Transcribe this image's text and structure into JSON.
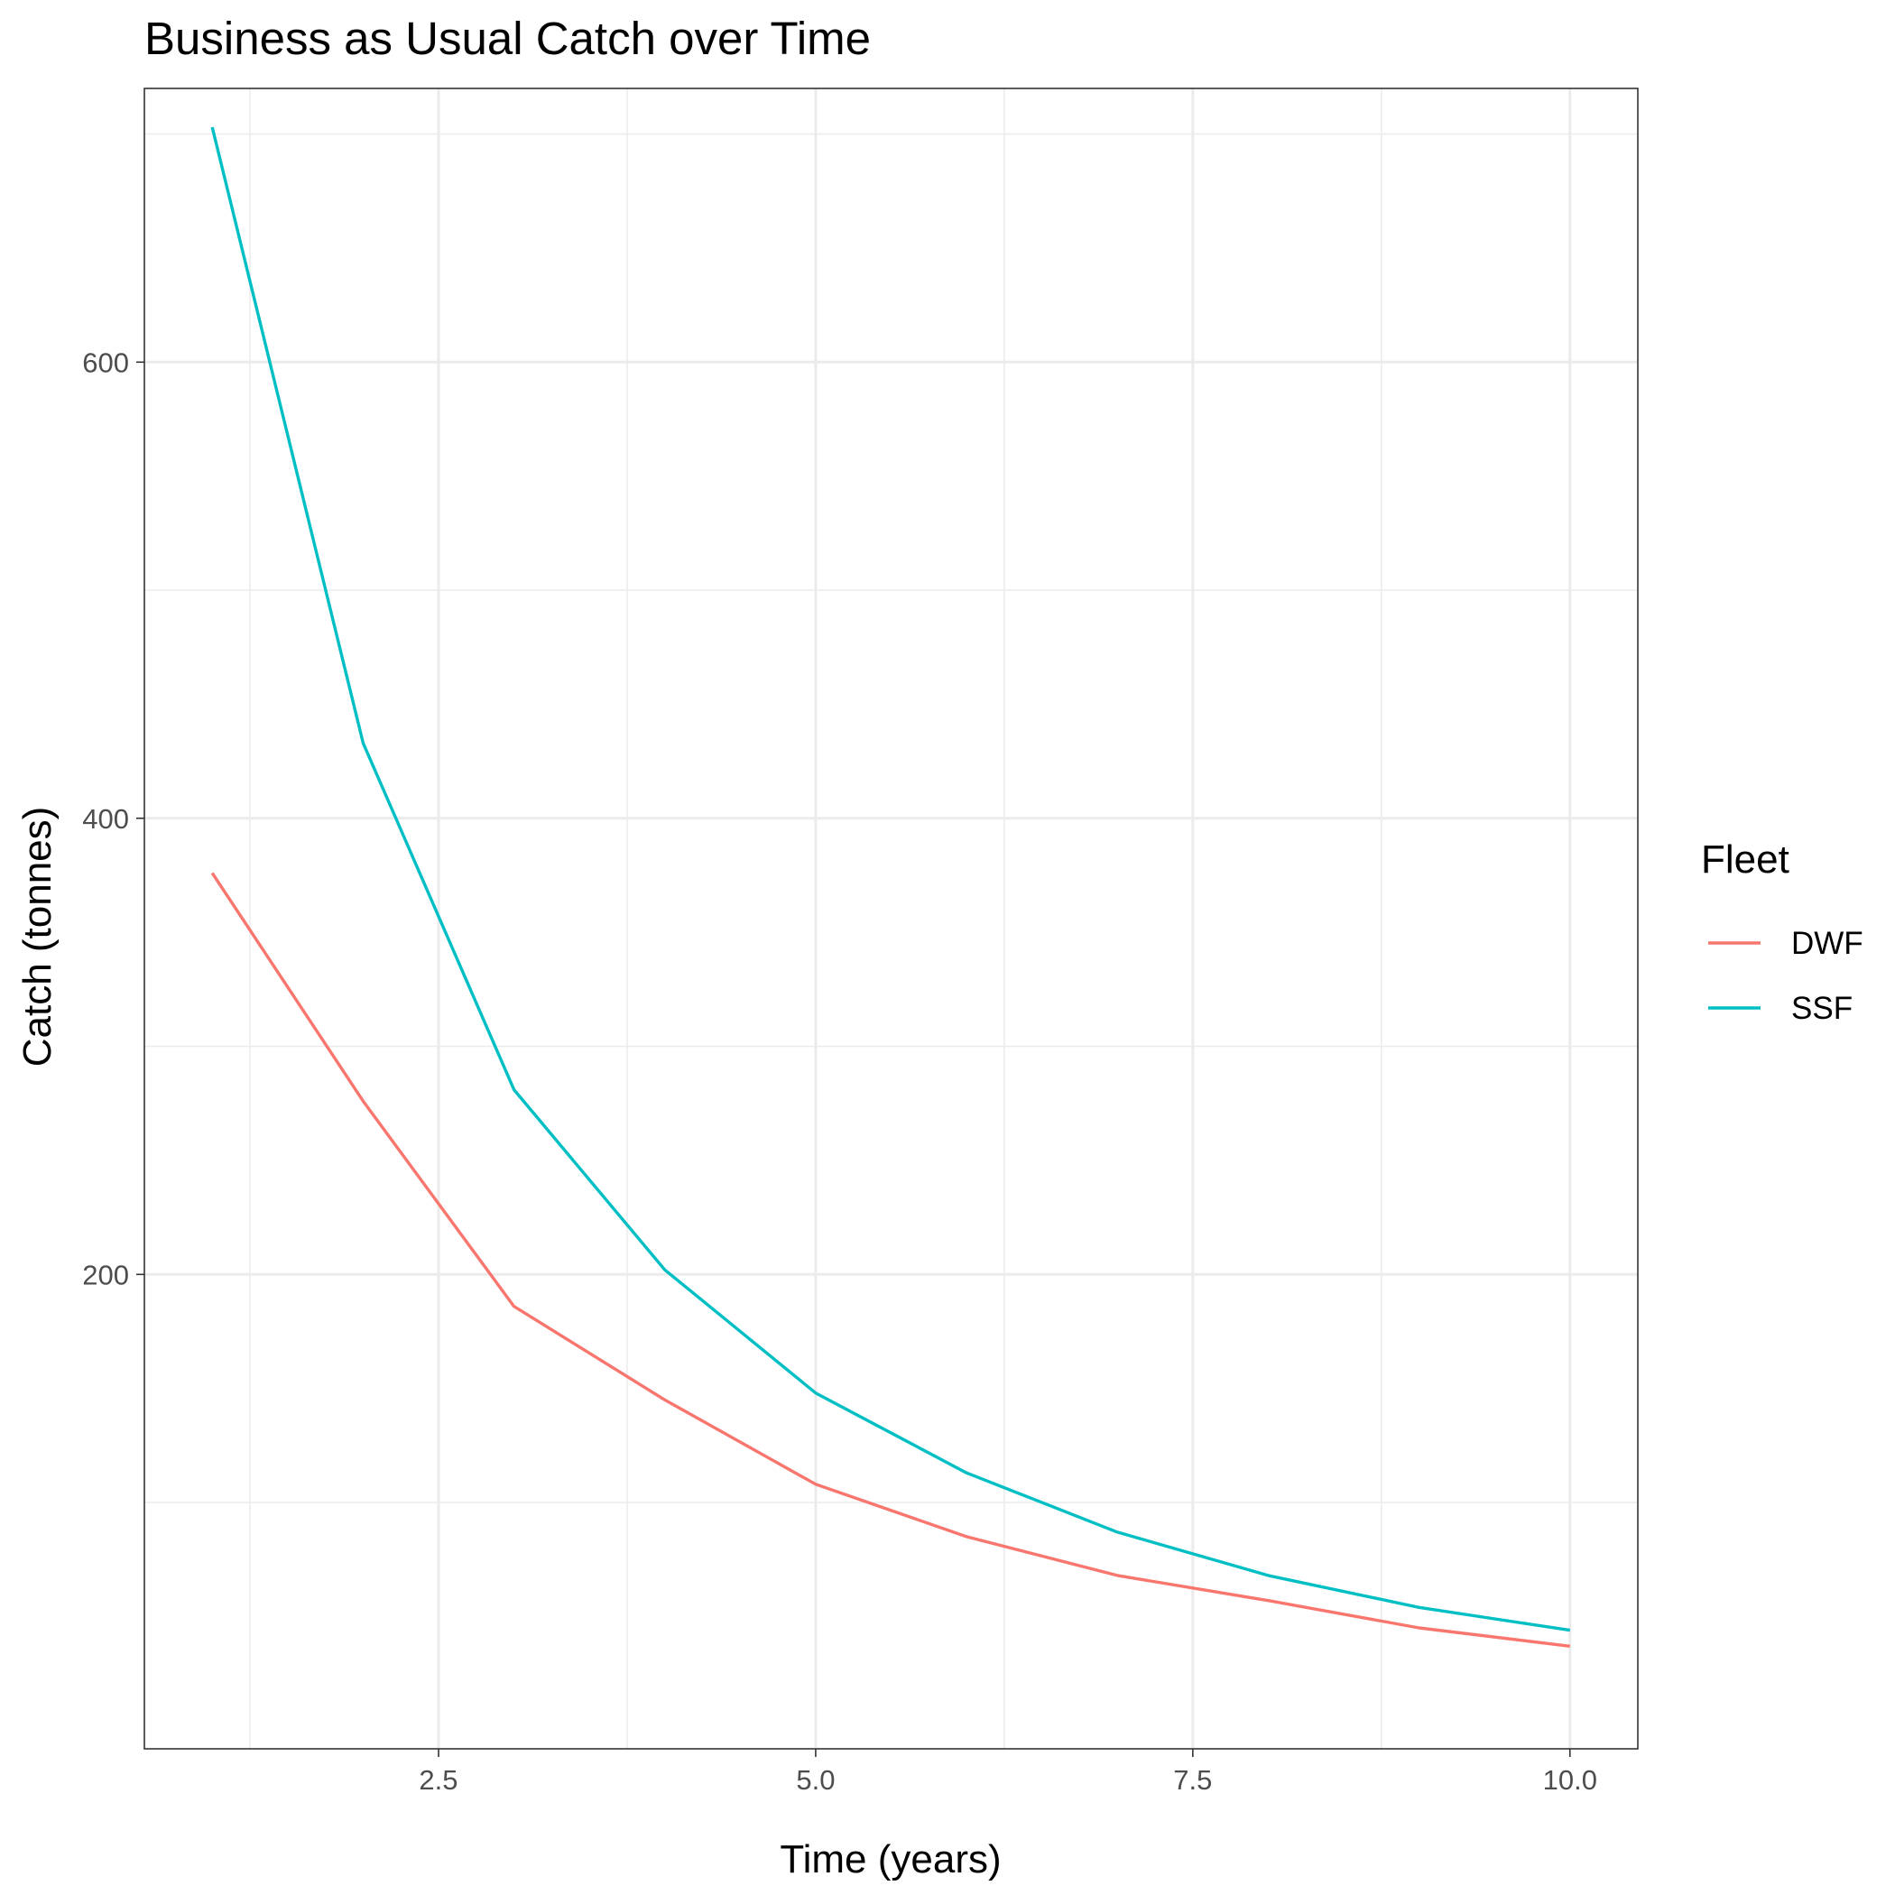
{
  "chart_data": {
    "type": "line",
    "title": "Business as Usual Catch over Time",
    "xlabel": "Time (years)",
    "ylabel": "Catch (tonnes)",
    "xlim": [
      0.55,
      10.45
    ],
    "ylim": [
      -8,
      720
    ],
    "x_ticks": [
      2.5,
      5.0,
      7.5,
      10.0
    ],
    "x_tick_labels": [
      "2.5",
      "5.0",
      "7.5",
      "10.0"
    ],
    "y_ticks": [
      200,
      400,
      600
    ],
    "y_tick_labels": [
      "200",
      "400",
      "600"
    ],
    "x_minor": [
      1.25,
      3.75,
      6.25,
      8.75
    ],
    "y_minor": [
      100,
      300,
      500,
      700
    ],
    "grid": true,
    "legend": {
      "title": "Fleet",
      "position": "right"
    },
    "x": [
      1,
      2,
      3,
      4,
      5,
      6,
      7,
      8,
      9,
      10
    ],
    "series": [
      {
        "name": "DWF",
        "color": "#F8766D",
        "values": [
          376,
          276,
          186,
          145,
          108,
          85,
          68,
          57,
          45,
          37
        ]
      },
      {
        "name": "SSF",
        "color": "#00BFC4",
        "values": [
          703,
          433,
          281,
          202,
          148,
          113,
          87,
          68,
          54,
          44
        ]
      }
    ]
  }
}
